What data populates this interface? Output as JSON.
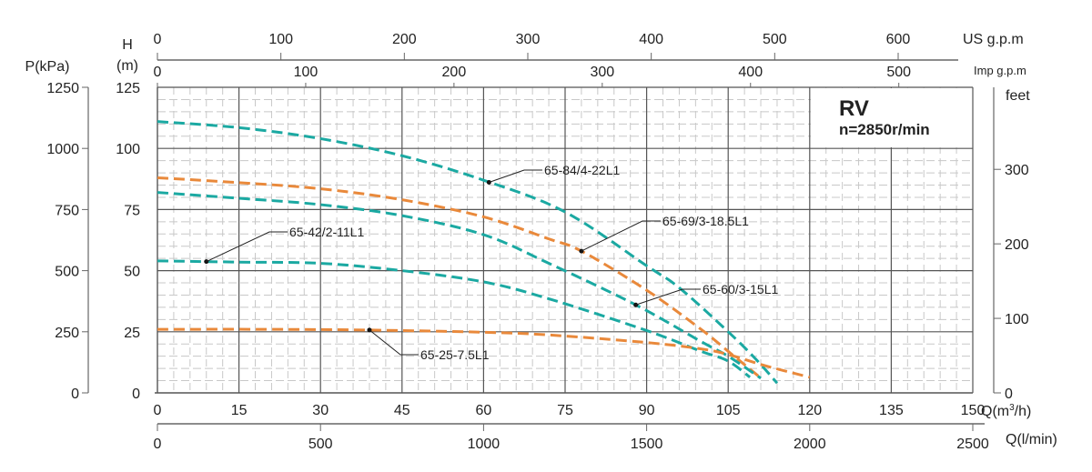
{
  "chart_data": {
    "type": "line",
    "title": "RV",
    "subtitle": "n=2850r/min",
    "xlabel": "Q(m³/h)",
    "ylabel": "H (m)",
    "xlim": [
      0,
      150
    ],
    "ylim": [
      0,
      125
    ],
    "grid": true,
    "x_ticks": [
      "0",
      "15",
      "30",
      "45",
      "60",
      "75",
      "90",
      "105",
      "120",
      "135",
      "150"
    ],
    "y_ticks": [
      "0",
      "25",
      "50",
      "75",
      "100",
      "125"
    ],
    "axes": {
      "h_label_top": "H",
      "h_label_unit": "(m)",
      "p_label": "P(kPa)",
      "p_ticks": [
        "0",
        "250",
        "500",
        "750",
        "1000",
        "1250"
      ],
      "feet_label": "feet",
      "feet_ticks": [
        "0",
        "100",
        "200",
        "300"
      ],
      "us_gpm_label": "US g.p.m",
      "us_gpm_ticks": [
        "0",
        "100",
        "200",
        "300",
        "400",
        "500",
        "600"
      ],
      "imp_gpm_label": "Imp g.p.m",
      "imp_gpm_ticks": [
        "0",
        "100",
        "200",
        "300",
        "400",
        "500"
      ],
      "q_m3h_label_pre": "Q(m",
      "q_m3h_label_sup": "3",
      "q_m3h_label_post": "/h)",
      "q_lmin_label": "Q(l/min)",
      "q_lmin_ticks": [
        "0",
        "500",
        "1000",
        "1500",
        "2000",
        "2500"
      ]
    },
    "colors": {
      "teal": "#1ba9a2",
      "orange": "#e9893b"
    },
    "series": [
      {
        "name": "65-84/4-22L1",
        "color": "teal",
        "x": [
          0,
          15,
          30,
          45,
          60,
          75,
          90,
          96,
          105,
          110,
          114
        ],
        "y": [
          111,
          108.5,
          104,
          97,
          87,
          74,
          52,
          43,
          25,
          14,
          4
        ],
        "label_at": 61
      },
      {
        "name": "65-69/3-18.5L1",
        "color": "orange",
        "x": [
          0,
          15,
          30,
          45,
          60,
          72,
          78,
          90,
          100,
          105,
          110.5
        ],
        "y": [
          88,
          86,
          83.5,
          79,
          72,
          63,
          58,
          42,
          26,
          17,
          7
        ],
        "label_at": 78
      },
      {
        "name": "65-60/3-15L1",
        "color": "teal",
        "x": [
          0,
          15,
          30,
          45,
          60,
          72,
          88,
          100,
          105,
          111
        ],
        "y": [
          82,
          79.6,
          77,
          72.5,
          64.7,
          53,
          36,
          21,
          15,
          6
        ],
        "label_at": 88
      },
      {
        "name": "65-42/2-11L1",
        "color": "teal",
        "x": [
          0,
          15,
          30,
          45,
          60,
          72,
          90,
          100,
          105,
          109
        ],
        "y": [
          54,
          53.5,
          53,
          50,
          45.4,
          38.5,
          25.5,
          17,
          13,
          6.4
        ],
        "label_at": 9
      },
      {
        "name": "65-25-7.5L1",
        "color": "orange",
        "x": [
          0,
          20,
          39,
          60,
          72,
          90,
          100,
          105,
          112,
          120
        ],
        "y": [
          26,
          26,
          25.7,
          24.8,
          23.7,
          20.6,
          18,
          15.7,
          11,
          6.4
        ],
        "label_at": 39
      }
    ]
  }
}
